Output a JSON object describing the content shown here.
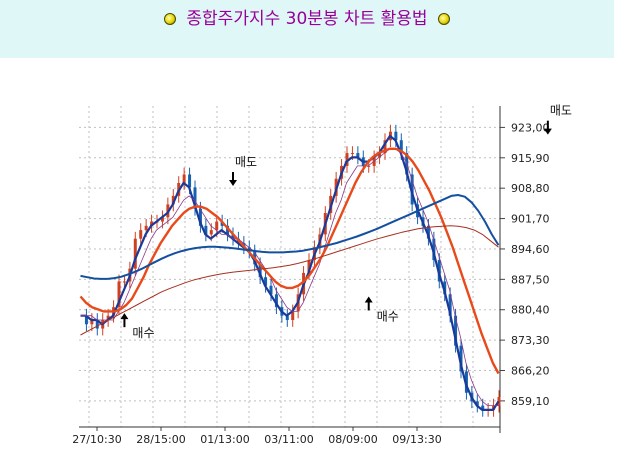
{
  "header": {
    "title": "종합주가지수 30분봉 차트 활용법",
    "left_icon": "yellow-bullet-icon",
    "right_icon": "yellow-bullet-icon"
  },
  "colors": {
    "header_bg": "#dff7f7",
    "title": "#990099",
    "candle_up": "#d04020",
    "candle_down": "#1560b0",
    "ma_fast": "#1a3a9a",
    "ma_mid": "#e84a1a",
    "ma_slow": "#1450a0",
    "ma_long": "#a83020",
    "ma_thin": "#8a3a8a",
    "grid": "#c0c0c0"
  },
  "chart_data": {
    "type": "line",
    "title": "",
    "xlabel": "",
    "ylabel": "",
    "ylim": [
      853,
      928
    ],
    "y_ticks": [
      "923,00",
      "915,90",
      "908,80",
      "901,70",
      "894,60",
      "887,50",
      "880,40",
      "873,30",
      "866,20",
      "859,10"
    ],
    "x_ticks": [
      "27/10:30",
      "28/15:00",
      "01/13:00",
      "03/11:00",
      "08/09:00",
      "09/13:30"
    ],
    "annotations": [
      {
        "text": "매수",
        "x": 8,
        "y": 879.6,
        "arrow": "up"
      },
      {
        "text": "매도",
        "x": 28,
        "y": 909.3,
        "arrow": "down"
      },
      {
        "text": "매수",
        "x": 53,
        "y": 883.5,
        "arrow": "up"
      },
      {
        "text": "매도",
        "x": 86,
        "y": 921.3,
        "arrow": "down"
      }
    ],
    "price": [
      879.0,
      877.0,
      878.0,
      876.0,
      878.0,
      879.0,
      881.0,
      887.0,
      887.0,
      890.0,
      897.0,
      899.0,
      900.0,
      901.0,
      901.0,
      902.0,
      905.0,
      907.0,
      910.0,
      912.0,
      909.0,
      904.0,
      900.0,
      898.0,
      899.0,
      901.0,
      900.0,
      898.0,
      897.0,
      896.0,
      895.0,
      894.0,
      891.0,
      888.0,
      886.0,
      884.0,
      881.0,
      879.0,
      878.0,
      880.0,
      884.0,
      889.0,
      892.0,
      895.0,
      898.0,
      903.0,
      907.0,
      911.0,
      914.0,
      917.0,
      917.0,
      916.0,
      914.0,
      914.0,
      916.0,
      917.0,
      920.0,
      922.0,
      920.0,
      917.0,
      912.0,
      905.0,
      902.0,
      900.0,
      897.0,
      892.0,
      887.0,
      884.0,
      879.0,
      872.0,
      866.0,
      861.0,
      859.0,
      858.0,
      857.0,
      857.0,
      858.0,
      860.0
    ],
    "series": [
      {
        "name": "",
        "color": "#1a3a9a",
        "values": [
          879.0,
          879.0,
          878.0,
          878.0,
          877.0,
          878.0,
          879.0,
          882.0,
          885.0,
          888.0,
          892.0,
          895.0,
          898.0,
          900.0,
          901.0,
          902.0,
          903.0,
          905.0,
          908.0,
          910.0,
          909.0,
          905.0,
          901.0,
          898.0,
          897.0,
          898.0,
          899.0,
          898.0,
          897.0,
          896.0,
          895.0,
          894.0,
          892.0,
          889.0,
          886.0,
          884.0,
          882.0,
          880.0,
          879.0,
          880.0,
          882.0,
          886.0,
          889.0,
          893.0,
          896.0,
          900.0,
          904.0,
          908.0,
          912.0,
          915.0,
          916.0,
          916.0,
          915.0,
          915.0,
          916.0,
          917.0,
          919.0,
          921.0,
          920.0,
          917.0,
          913.0,
          908.0,
          904.0,
          901.0,
          898.0,
          894.0,
          889.0,
          885.0,
          880.0,
          874.0,
          868.0,
          863.0,
          860.0,
          858.0,
          857.0,
          857.0,
          857.0,
          859.0
        ]
      },
      {
        "name": "",
        "color": "#8a3a8a",
        "values": [
          879.0,
          879.0,
          879.0,
          878.0,
          878.0,
          878.0,
          878.0,
          880.0,
          882.0,
          885.0,
          888.0,
          891.0,
          894.0,
          897.0,
          899.0,
          900.0,
          901.0,
          902.0,
          904.0,
          906.0,
          907.0,
          906.0,
          904.0,
          902.0,
          900.0,
          899.0,
          898.0,
          898.0,
          897.0,
          897.0,
          896.0,
          895.0,
          894.0,
          892.0,
          890.0,
          888.0,
          885.0,
          883.0,
          881.0,
          880.0,
          880.0,
          882.0,
          885.0,
          888.0,
          891.0,
          895.0,
          899.0,
          903.0,
          906.0,
          910.0,
          912.0,
          914.0,
          914.0,
          914.0,
          915.0,
          916.0,
          917.0,
          918.0,
          918.0,
          917.0,
          915.0,
          911.0,
          907.0,
          904.0,
          901.0,
          897.0,
          893.0,
          889.0,
          885.0,
          879.0,
          874.0,
          868.0,
          864.0,
          861.0,
          859.0,
          858.0,
          858.0,
          858.0
        ]
      },
      {
        "name": "",
        "color": "#e84a1a",
        "values": [
          883.5,
          882.0,
          881.0,
          880.5,
          880.0,
          880.0,
          880.0,
          880.5,
          881.5,
          883.0,
          885.5,
          888.0,
          891.0,
          893.5,
          896.0,
          898.0,
          900.0,
          901.5,
          903.0,
          904.0,
          904.5,
          904.5,
          904.0,
          903.0,
          902.0,
          900.5,
          899.0,
          897.5,
          896.0,
          894.5,
          893.0,
          891.5,
          890.0,
          888.5,
          887.0,
          886.0,
          885.5,
          885.5,
          886.0,
          887.0,
          888.5,
          890.5,
          892.5,
          895.0,
          898.0,
          901.0,
          904.0,
          907.0,
          910.0,
          912.5,
          914.5,
          916.0,
          917.0,
          917.5,
          918.0,
          918.0,
          917.5,
          916.5,
          915.0,
          913.0,
          910.5,
          908.0,
          905.0,
          902.0,
          898.5,
          895.0,
          891.0,
          887.0,
          883.0,
          879.0,
          875.0,
          871.5,
          868.0,
          865.5
        ]
      },
      {
        "name": "",
        "color": "#1450a0",
        "values": [
          888.3,
          888.0,
          887.7,
          887.6,
          887.6,
          887.8,
          888.1,
          888.6,
          889.2,
          889.9,
          890.7,
          891.5,
          892.3,
          893.0,
          893.6,
          894.1,
          894.5,
          894.8,
          895.0,
          895.1,
          895.1,
          895.0,
          894.9,
          894.7,
          894.5,
          894.3,
          894.1,
          893.9,
          893.8,
          893.8,
          893.8,
          893.9,
          894.0,
          894.2,
          894.5,
          894.8,
          895.2,
          895.6,
          896.0,
          896.5,
          897.0,
          897.5,
          898.1,
          898.7,
          899.3,
          900.0,
          900.7,
          901.4,
          902.1,
          902.8,
          903.5,
          904.2,
          904.9,
          905.6,
          906.3,
          907.0,
          907.2,
          906.8,
          905.5,
          903.5,
          901.0,
          898.0,
          895.5
        ]
      },
      {
        "name": "",
        "color": "#a83020",
        "values": [
          874.5,
          875.5,
          876.5,
          877.5,
          878.5,
          879.5,
          880.5,
          881.5,
          882.5,
          883.5,
          884.5,
          885.3,
          886.0,
          886.7,
          887.3,
          887.8,
          888.2,
          888.6,
          888.9,
          889.2,
          889.4,
          889.6,
          889.8,
          890.0,
          890.2,
          890.5,
          890.8,
          891.2,
          891.7,
          892.2,
          892.8,
          893.4,
          894.0,
          894.6,
          895.2,
          895.8,
          896.4,
          897.0,
          897.5,
          898.0,
          898.5,
          898.9,
          899.3,
          899.6,
          899.8,
          899.9,
          900.0,
          899.9,
          899.6,
          899.0,
          898.0,
          896.5,
          895.0
        ]
      }
    ]
  }
}
